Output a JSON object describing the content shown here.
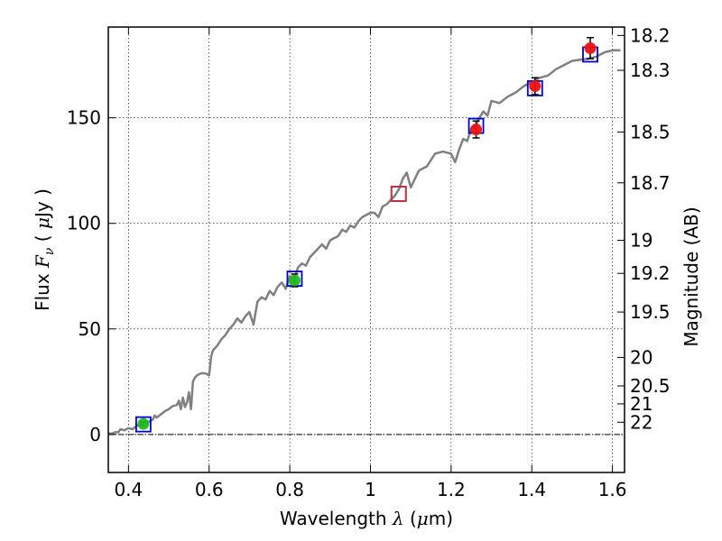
{
  "chart_data": {
    "type": "scatter",
    "xlabel_text": "Wavelength",
    "xlabel_math": "λ",
    "xlabel_unit_open": " (",
    "xlabel_unit_mu": "μ",
    "xlabel_unit_rest": "m)",
    "ylabel_text": "Flux",
    "ylabel_math": "F",
    "ylabel_math_sub": "ν",
    "ylabel_unit_open": " ( ",
    "ylabel_unit_mu": "μ",
    "ylabel_unit_rest": "Jy )",
    "y2label": "Magnitude (AB)",
    "xlim": [
      0.35,
      1.63
    ],
    "ylim": [
      -18,
      193
    ],
    "grid": true,
    "x_ticks": [
      {
        "value": 0.4,
        "label": "0.4"
      },
      {
        "value": 0.6,
        "label": "0.6"
      },
      {
        "value": 0.8,
        "label": "0.8"
      },
      {
        "value": 1.0,
        "label": "1"
      },
      {
        "value": 1.2,
        "label": "1.2"
      },
      {
        "value": 1.4,
        "label": "1.4"
      },
      {
        "value": 1.6,
        "label": "1.6"
      }
    ],
    "y_ticks": [
      {
        "value": 0,
        "label": "0"
      },
      {
        "value": 50,
        "label": "50"
      },
      {
        "value": 100,
        "label": "100"
      },
      {
        "value": 150,
        "label": "150"
      }
    ],
    "y2_ticks": [
      {
        "flux": 189.0,
        "label": "18.2"
      },
      {
        "flux": 172.5,
        "label": "18.3"
      },
      {
        "flux": 143.3,
        "label": "18.5"
      },
      {
        "flux": 119.2,
        "label": "18.7"
      },
      {
        "flux": 92.0,
        "label": "19"
      },
      {
        "flux": 76.3,
        "label": "19.2"
      },
      {
        "flux": 58.0,
        "label": "19.5"
      },
      {
        "flux": 36.5,
        "label": "20"
      },
      {
        "flux": 23.0,
        "label": "20.5"
      },
      {
        "flux": 14.5,
        "label": "21"
      },
      {
        "flux": 5.8,
        "label": "22"
      }
    ],
    "model_spectrum": {
      "color": "#808080",
      "x": [
        0.35,
        0.36,
        0.37,
        0.375,
        0.38,
        0.39,
        0.4,
        0.41,
        0.42,
        0.43,
        0.44,
        0.45,
        0.46,
        0.465,
        0.47,
        0.48,
        0.49,
        0.5,
        0.51,
        0.52,
        0.525,
        0.53,
        0.535,
        0.54,
        0.545,
        0.55,
        0.555,
        0.56,
        0.565,
        0.57,
        0.58,
        0.59,
        0.6,
        0.605,
        0.61,
        0.62,
        0.63,
        0.64,
        0.65,
        0.66,
        0.67,
        0.68,
        0.69,
        0.7,
        0.71,
        0.72,
        0.73,
        0.74,
        0.75,
        0.76,
        0.77,
        0.78,
        0.79,
        0.8,
        0.81,
        0.82,
        0.83,
        0.84,
        0.85,
        0.86,
        0.87,
        0.88,
        0.89,
        0.9,
        0.91,
        0.92,
        0.93,
        0.94,
        0.95,
        0.96,
        0.97,
        0.98,
        0.99,
        1.0,
        1.01,
        1.02,
        1.03,
        1.04,
        1.05,
        1.06,
        1.07,
        1.08,
        1.09,
        1.1,
        1.12,
        1.14,
        1.16,
        1.18,
        1.2,
        1.21,
        1.22,
        1.23,
        1.24,
        1.25,
        1.26,
        1.27,
        1.28,
        1.29,
        1.3,
        1.32,
        1.34,
        1.36,
        1.38,
        1.4,
        1.42,
        1.44,
        1.46,
        1.48,
        1.5,
        1.52,
        1.54,
        1.56,
        1.58,
        1.6,
        1.62
      ],
      "y": [
        0.5,
        0.5,
        1.2,
        1.0,
        2.5,
        2.0,
        3.0,
        2.5,
        4.0,
        5.0,
        5.5,
        6.0,
        7.0,
        9.0,
        8.0,
        9.5,
        11.0,
        12.0,
        13.5,
        14.0,
        16.0,
        12.0,
        17.5,
        13.0,
        15.0,
        20.0,
        12.0,
        25.0,
        27.0,
        28.0,
        29.0,
        29.0,
        28.0,
        37.0,
        40.0,
        42.0,
        45.0,
        47.0,
        50.0,
        52.0,
        55.0,
        53.0,
        56.0,
        58.0,
        52.0,
        63.0,
        65.0,
        64.0,
        68.0,
        66.0,
        70.0,
        72.0,
        69.0,
        75.0,
        73.0,
        79.0,
        81.0,
        80.0,
        84.0,
        86.0,
        88.0,
        90.0,
        88.0,
        92.0,
        93.0,
        94.0,
        97.0,
        96.0,
        99.0,
        98.0,
        101.0,
        103.0,
        104.0,
        105.0,
        105.0,
        103.0,
        108.0,
        109.0,
        111.0,
        113.0,
        116.0,
        121.0,
        124.0,
        117.0,
        125.0,
        127.0,
        133.0,
        134.0,
        133.0,
        129.0,
        135.0,
        140.0,
        139.0,
        145.0,
        146.0,
        150.0,
        153.0,
        151.0,
        158.0,
        157.0,
        160.0,
        162.0,
        165.0,
        167.0,
        169.0,
        170.0,
        173.0,
        175.0,
        177.0,
        177.5,
        178.0,
        179.0,
        181.0,
        182.0,
        182.0
      ]
    },
    "series": [
      {
        "marker": "square-open",
        "color": "#0000cc",
        "points": [
          {
            "x": 0.437,
            "y": 4.8
          },
          {
            "x": 0.812,
            "y": 73.8
          },
          {
            "x": 1.07,
            "y": 114.0
          },
          {
            "x": 1.262,
            "y": 146.2
          },
          {
            "x": 1.408,
            "y": 164.0
          },
          {
            "x": 1.545,
            "y": 180.0
          }
        ]
      },
      {
        "marker": "circle",
        "color": "#22bb22",
        "points": [
          {
            "x": 0.437,
            "y": 5.0,
            "err": 1.0
          },
          {
            "x": 0.812,
            "y": 73.0,
            "err": 3.0
          }
        ]
      },
      {
        "marker": "square-open",
        "color": "#cc3333",
        "points": [
          {
            "x": 1.07,
            "y": 114.0
          }
        ]
      },
      {
        "marker": "circle",
        "color": "#ee1111",
        "points": [
          {
            "x": 1.262,
            "y": 144.5,
            "err": 4.0
          },
          {
            "x": 1.408,
            "y": 165.0,
            "err": 4.0
          },
          {
            "x": 1.545,
            "y": 183.0,
            "err": 5.0
          }
        ]
      }
    ]
  }
}
